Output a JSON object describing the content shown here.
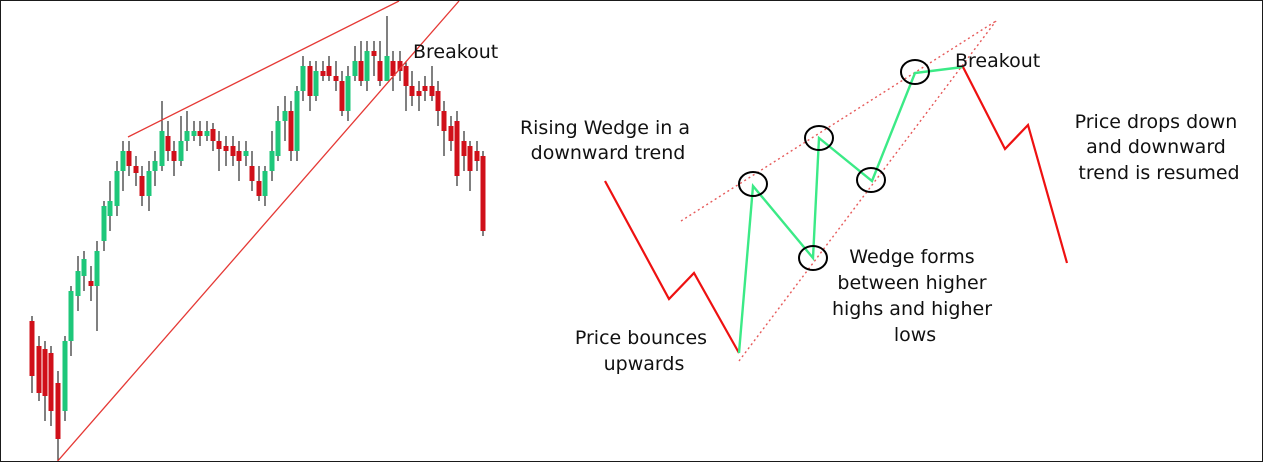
{
  "left_chart": {
    "breakout_label": "Breakout",
    "colors": {
      "bull": "#1ec77a",
      "bear": "#d0101a",
      "wick": "#000000",
      "line": "#e53935"
    }
  },
  "right_diagram": {
    "breakout_label": "Breakout",
    "rising_wedge_label": [
      "Rising Wedge in a",
      "downward trend"
    ],
    "bounce_label": [
      "Price bounces",
      "upwards"
    ],
    "wedge_forms_label": [
      "Wedge forms",
      "between higher",
      "highs and higher",
      "lows"
    ],
    "drops_label": [
      "Price drops down",
      "and downward",
      "trend is resumed"
    ],
    "colors": {
      "red": "#ee1111",
      "green": "#3bea86",
      "dotted": "#e65a5a",
      "circle": "#000000"
    }
  }
}
